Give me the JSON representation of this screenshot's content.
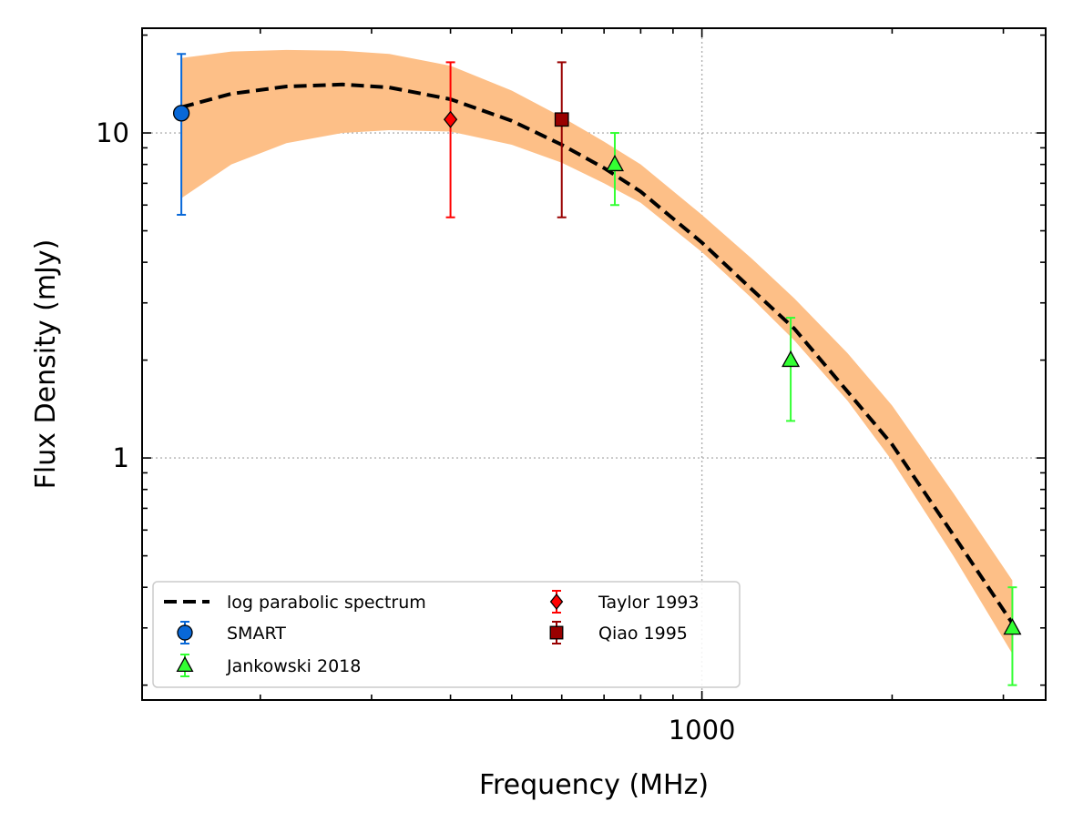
{
  "chart_data": {
    "type": "scatter",
    "title": "",
    "xlabel": "Frequency (MHz)",
    "ylabel": "Flux Density (mJy)",
    "x_scale": "log",
    "y_scale": "log",
    "xlim": [
      130,
      3500
    ],
    "ylim": [
      0.18,
      21
    ],
    "x_tick_labels": [
      {
        "value": 1000,
        "label": "1000"
      }
    ],
    "y_tick_labels": [
      {
        "value": 1,
        "label": "1"
      },
      {
        "value": 10,
        "label": "10"
      }
    ],
    "grid": true,
    "legend_position": "lower-left",
    "legend_columns": 2,
    "model": {
      "name": "log parabolic spectrum",
      "color": "#000000",
      "style": "dashed",
      "x": [
        150,
        180,
        220,
        270,
        320,
        400,
        500,
        600,
        700,
        800,
        1000,
        1200,
        1400,
        1700,
        2000,
        2500,
        3100
      ],
      "y": [
        12.0,
        13.2,
        13.9,
        14.1,
        13.8,
        12.7,
        10.9,
        9.2,
        7.8,
        6.6,
        4.6,
        3.3,
        2.5,
        1.6,
        1.1,
        0.58,
        0.31
      ],
      "band_color": "#fdbf87",
      "band_lower": [
        6.3,
        8.0,
        9.3,
        10.0,
        10.2,
        10.1,
        9.2,
        8.1,
        7.0,
        6.1,
        4.3,
        3.1,
        2.3,
        1.5,
        0.98,
        0.5,
        0.25
      ],
      "band_upper": [
        17.0,
        17.8,
        18.0,
        17.9,
        17.5,
        16.1,
        13.5,
        11.2,
        9.4,
        8.0,
        5.6,
        4.1,
        3.1,
        2.1,
        1.45,
        0.78,
        0.42
      ]
    },
    "series": [
      {
        "name": "SMART",
        "marker": "circle",
        "color": "#0868d8",
        "edge": "#000000",
        "points": [
          {
            "x": 150,
            "y": 11.5,
            "y_low": 5.6,
            "y_high": 17.5
          }
        ]
      },
      {
        "name": "Jankowski 2018",
        "marker": "triangle",
        "color": "#33ff33",
        "edge": "#000000",
        "points": [
          {
            "x": 728,
            "y": 8.0,
            "y_low": 6.0,
            "y_high": 10.0
          },
          {
            "x": 1382,
            "y": 2.0,
            "y_low": 1.3,
            "y_high": 2.7
          },
          {
            "x": 3100,
            "y": 0.3,
            "y_low": 0.2,
            "y_high": 0.4
          }
        ]
      },
      {
        "name": "Taylor 1993",
        "marker": "diamond",
        "color": "#ff0000",
        "edge": "#000000",
        "points": [
          {
            "x": 400,
            "y": 11.0,
            "y_low": 5.5,
            "y_high": 16.5
          }
        ]
      },
      {
        "name": "Qiao 1995",
        "marker": "square",
        "color": "#990000",
        "edge": "#000000",
        "points": [
          {
            "x": 600,
            "y": 11.0,
            "y_low": 5.5,
            "y_high": 16.5
          }
        ]
      }
    ]
  }
}
